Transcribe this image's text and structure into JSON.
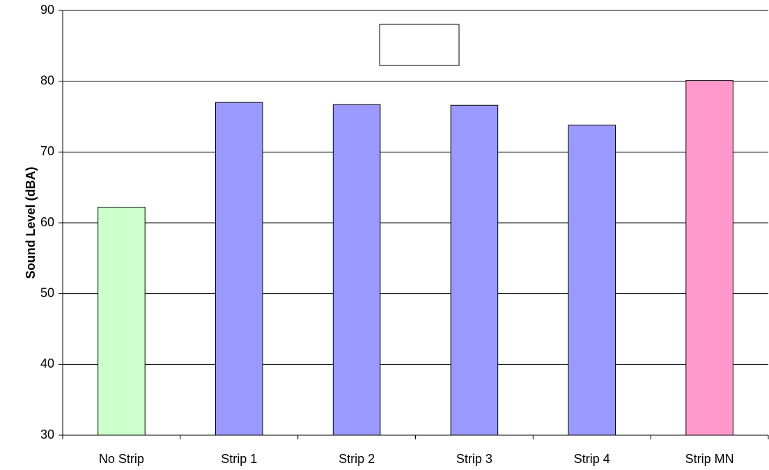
{
  "chart_data": {
    "type": "bar",
    "y_label": "Sound Level (dBA)",
    "categories": [
      "No Strip",
      "Strip 1",
      "Strip 2",
      "Strip 3",
      "Strip 4",
      "Strip MN"
    ],
    "values": [
      62.2,
      77.0,
      76.7,
      76.6,
      73.8,
      80.1
    ],
    "colors": [
      "#ccffcc",
      "#9999ff",
      "#9999ff",
      "#9999ff",
      "#9999ff",
      "#ff99cc"
    ],
    "ylim": [
      30,
      90
    ],
    "yticks": [
      30,
      40,
      50,
      60,
      70,
      80,
      90
    ],
    "grid": true
  }
}
